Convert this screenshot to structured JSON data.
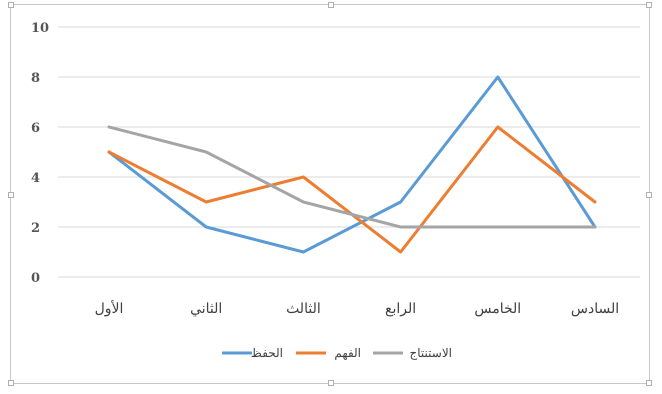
{
  "chart_data": {
    "type": "line",
    "categories": [
      "الأول",
      "الثاني",
      "الثالث",
      "الرابع",
      "الخامس",
      "السادس"
    ],
    "series": [
      {
        "name": "الحفظ",
        "color": "#5b9bd5",
        "values": [
          5,
          2,
          1,
          3,
          8,
          2
        ]
      },
      {
        "name": "الفهم",
        "color": "#ed7d31",
        "values": [
          5,
          3,
          4,
          1,
          6,
          3
        ]
      },
      {
        "name": "الاستنتاج",
        "color": "#a5a5a5",
        "values": [
          6,
          5,
          3,
          2,
          2,
          2
        ]
      }
    ],
    "yticks": [
      0,
      2,
      4,
      6,
      8,
      10
    ],
    "ylim": [
      0,
      10
    ],
    "grid": true,
    "legend": "bottom",
    "title": "",
    "xlabel": "",
    "ylabel": ""
  }
}
